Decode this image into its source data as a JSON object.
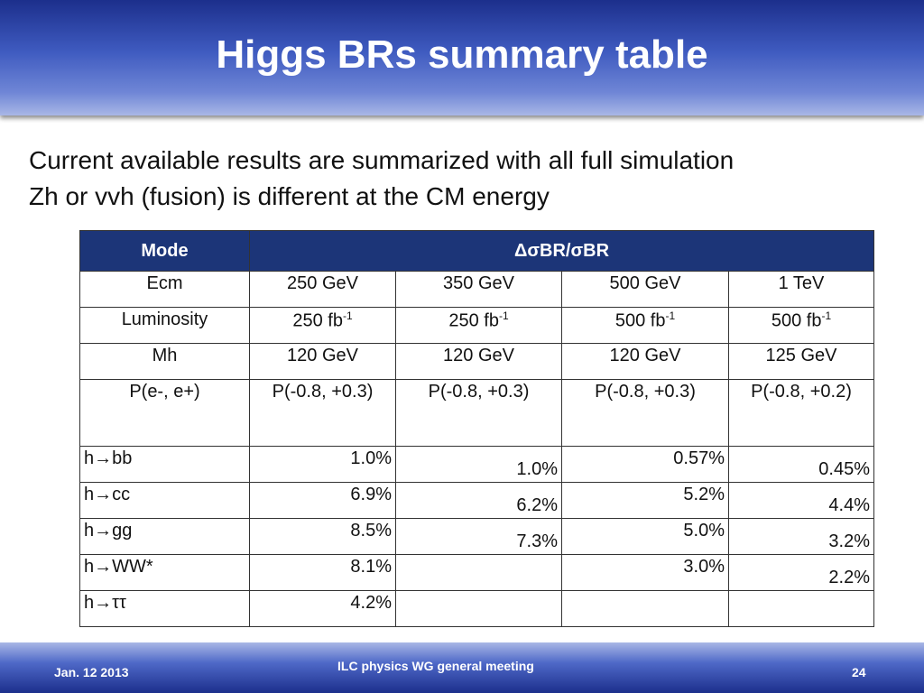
{
  "header": {
    "title": "Higgs BRs summary table"
  },
  "intro": [
    "Current available results are summarized with all full simulation",
    "Zh or vvh (fusion) is different at the CM energy"
  ],
  "table": {
    "header": [
      "Mode",
      "ΔσBR/σBR"
    ],
    "rows": [
      [
        "Ecm",
        "250 GeV",
        "350 GeV",
        "500 GeV",
        "1 TeV"
      ],
      [
        "Luminosity",
        {
          "base": "250 fb",
          "sup": "-1"
        },
        {
          "base": "250 fb",
          "sup": "-1"
        },
        {
          "base": "500 fb",
          "sup": "-1"
        },
        {
          "base": "500 fb",
          "sup": "-1"
        }
      ],
      [
        "Mh",
        "120 GeV",
        "120 GeV",
        "120 GeV",
        "125 GeV"
      ],
      [
        "P(e-, e+)",
        "P(-0.8, +0.3)",
        "P(-0.8, +0.3)",
        "P(-0.8, +0.3)",
        "P(-0.8, +0.2)"
      ],
      [
        "h→bb",
        "1.0%",
        "1.0%",
        "0.57%",
        "0.45%"
      ],
      [
        "h→cc",
        "6.9%",
        "6.2%",
        "5.2%",
        "4.4%"
      ],
      [
        "h→gg",
        "8.5%",
        "7.3%",
        "5.0%",
        "3.2%"
      ],
      [
        "h→WW*",
        "8.1%",
        null,
        "3.0%",
        "2.2%"
      ],
      [
        "h→ττ",
        "4.2%",
        null,
        null,
        null
      ]
    ]
  },
  "footer": {
    "date": "Jan. 12 2013",
    "meeting": "ILC physics WG general meeting",
    "page": "24"
  }
}
